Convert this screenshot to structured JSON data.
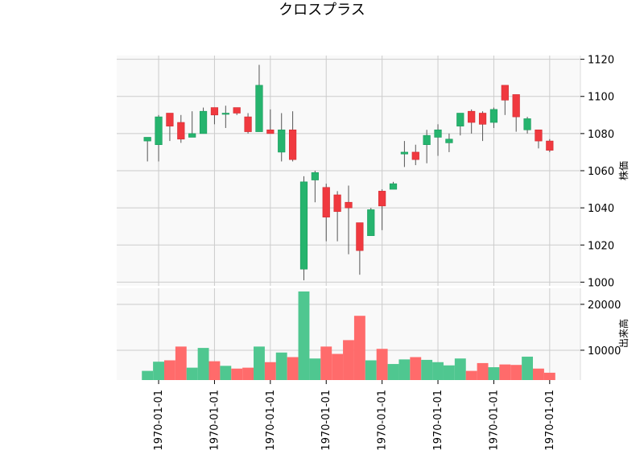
{
  "chart_data": {
    "type": "candlestick",
    "title": "クロスプラス",
    "price_axis": {
      "label": "株価",
      "ylim": [
        998,
        1122
      ],
      "ticks": [
        1000,
        1020,
        1040,
        1060,
        1080,
        1100,
        1120
      ]
    },
    "volume_axis": {
      "label": "出来高",
      "ylim": [
        3500,
        23500
      ],
      "ticks": [
        10000,
        20000
      ]
    },
    "x_tick_labels": [
      "1970-01-01",
      "1970-01-01",
      "1970-01-01",
      "1970-01-01",
      "1970-01-01",
      "1970-01-01",
      "1970-01-01",
      "1970-01-01"
    ],
    "x_tick_positions": [
      1,
      6,
      11,
      16,
      21,
      26,
      31,
      36
    ],
    "grid": true,
    "up_color": "#26b46e",
    "down_color": "#f0393f",
    "up_volume_color": "#4fc790",
    "down_volume_color": "#ff6b6b",
    "candles": [
      {
        "open": 1076,
        "high": 1078,
        "low": 1065,
        "close": 1078,
        "volume": 5500
      },
      {
        "open": 1074,
        "high": 1090,
        "low": 1065,
        "close": 1089,
        "volume": 7500
      },
      {
        "open": 1091,
        "high": 1091,
        "low": 1076,
        "close": 1084,
        "volume": 7800
      },
      {
        "open": 1086,
        "high": 1090,
        "low": 1075,
        "close": 1077,
        "volume": 10800
      },
      {
        "open": 1078,
        "high": 1092,
        "low": 1078,
        "close": 1080,
        "volume": 6200
      },
      {
        "open": 1080,
        "high": 1094,
        "low": 1080,
        "close": 1092,
        "volume": 10500
      },
      {
        "open": 1094,
        "high": 1094,
        "low": 1085,
        "close": 1090,
        "volume": 7600
      },
      {
        "open": 1091,
        "high": 1095,
        "low": 1083,
        "close": 1091,
        "volume": 6600
      },
      {
        "open": 1094,
        "high": 1094,
        "low": 1090,
        "close": 1091,
        "volume": 6000
      },
      {
        "open": 1089,
        "high": 1091,
        "low": 1080,
        "close": 1081,
        "volume": 6200
      },
      {
        "open": 1081,
        "high": 1117,
        "low": 1081,
        "close": 1106,
        "volume": 10800
      },
      {
        "open": 1082,
        "high": 1093,
        "low": 1080,
        "close": 1080,
        "volume": 7400
      },
      {
        "open": 1070,
        "high": 1091,
        "low": 1065,
        "close": 1082,
        "volume": 9500
      },
      {
        "open": 1082,
        "high": 1092,
        "low": 1065,
        "close": 1066,
        "volume": 8500
      },
      {
        "open": 1007,
        "high": 1057,
        "low": 1001,
        "close": 1054,
        "volume": 22800
      },
      {
        "open": 1055,
        "high": 1060,
        "low": 1043,
        "close": 1059,
        "volume": 8200
      },
      {
        "open": 1051,
        "high": 1053,
        "low": 1022,
        "close": 1035,
        "volume": 10800
      },
      {
        "open": 1047,
        "high": 1049,
        "low": 1022,
        "close": 1038,
        "volume": 9200
      },
      {
        "open": 1043,
        "high": 1052,
        "low": 1015,
        "close": 1040,
        "volume": 12200
      },
      {
        "open": 1032,
        "high": 1032,
        "low": 1004,
        "close": 1017,
        "volume": 17500
      },
      {
        "open": 1025,
        "high": 1040,
        "low": 1025,
        "close": 1039,
        "volume": 7800
      },
      {
        "open": 1049,
        "high": 1050,
        "low": 1028,
        "close": 1041,
        "volume": 10300
      },
      {
        "open": 1050,
        "high": 1054,
        "low": 1050,
        "close": 1053,
        "volume": 7000
      },
      {
        "open": 1069,
        "high": 1076,
        "low": 1062,
        "close": 1070,
        "volume": 8000
      },
      {
        "open": 1070,
        "high": 1074,
        "low": 1063,
        "close": 1066,
        "volume": 8500
      },
      {
        "open": 1074,
        "high": 1082,
        "low": 1064,
        "close": 1079,
        "volume": 7900
      },
      {
        "open": 1078,
        "high": 1085,
        "low": 1068,
        "close": 1082,
        "volume": 7400
      },
      {
        "open": 1075,
        "high": 1080,
        "low": 1070,
        "close": 1077,
        "volume": 6700
      },
      {
        "open": 1084,
        "high": 1091,
        "low": 1079,
        "close": 1091,
        "volume": 8200
      },
      {
        "open": 1092,
        "high": 1093,
        "low": 1080,
        "close": 1086,
        "volume": 5500
      },
      {
        "open": 1091,
        "high": 1092,
        "low": 1076,
        "close": 1085,
        "volume": 7200
      },
      {
        "open": 1086,
        "high": 1094,
        "low": 1083,
        "close": 1093,
        "volume": 6300
      },
      {
        "open": 1106,
        "high": 1106,
        "low": 1090,
        "close": 1098,
        "volume": 6900
      },
      {
        "open": 1101,
        "high": 1101,
        "low": 1081,
        "close": 1089,
        "volume": 6800
      },
      {
        "open": 1082,
        "high": 1089,
        "low": 1080,
        "close": 1088,
        "volume": 8600
      },
      {
        "open": 1082,
        "high": 1082,
        "low": 1072,
        "close": 1076,
        "volume": 6000
      },
      {
        "open": 1076,
        "high": 1077,
        "low": 1070,
        "close": 1071,
        "volume": 5100
      }
    ]
  }
}
